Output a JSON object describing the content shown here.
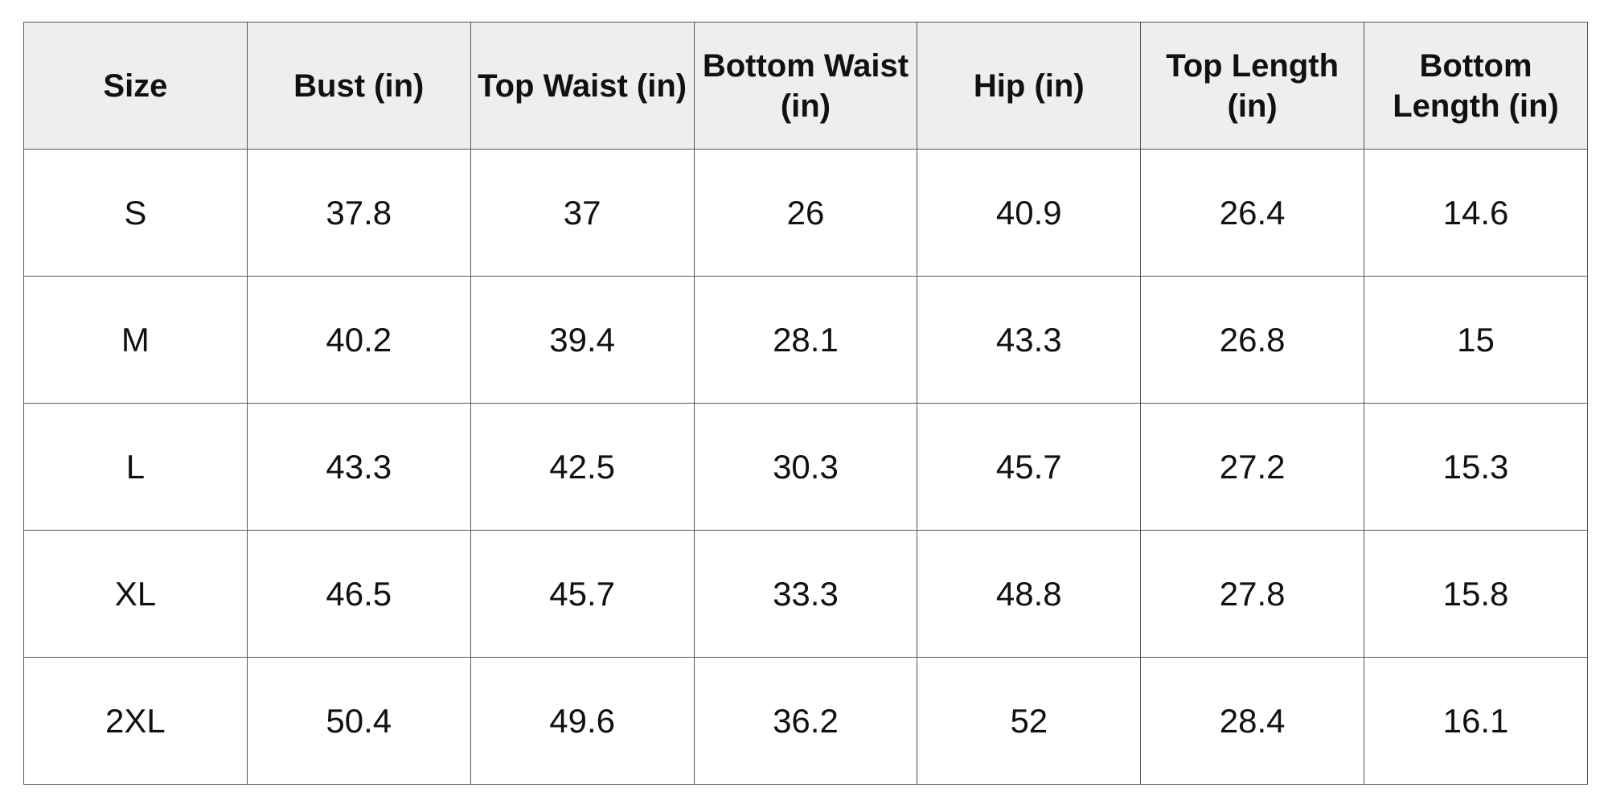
{
  "table": {
    "header": [
      "Size",
      "Bust (in)",
      "Top Waist (in)",
      "Bottom Waist (in)",
      "Hip (in)",
      "Top Length (in)",
      "Bottom Length (in)"
    ],
    "rows": [
      [
        "S",
        "37.8",
        "37",
        "26",
        "40.9",
        "26.4",
        "14.6"
      ],
      [
        "M",
        "40.2",
        "39.4",
        "28.1",
        "43.3",
        "26.8",
        "15"
      ],
      [
        "L",
        "43.3",
        "42.5",
        "30.3",
        "45.7",
        "27.2",
        "15.3"
      ],
      [
        "XL",
        "46.5",
        "45.7",
        "33.3",
        "48.8",
        "27.8",
        "15.8"
      ],
      [
        "2XL",
        "50.4",
        "49.6",
        "36.2",
        "52",
        "28.4",
        "16.1"
      ]
    ]
  }
}
